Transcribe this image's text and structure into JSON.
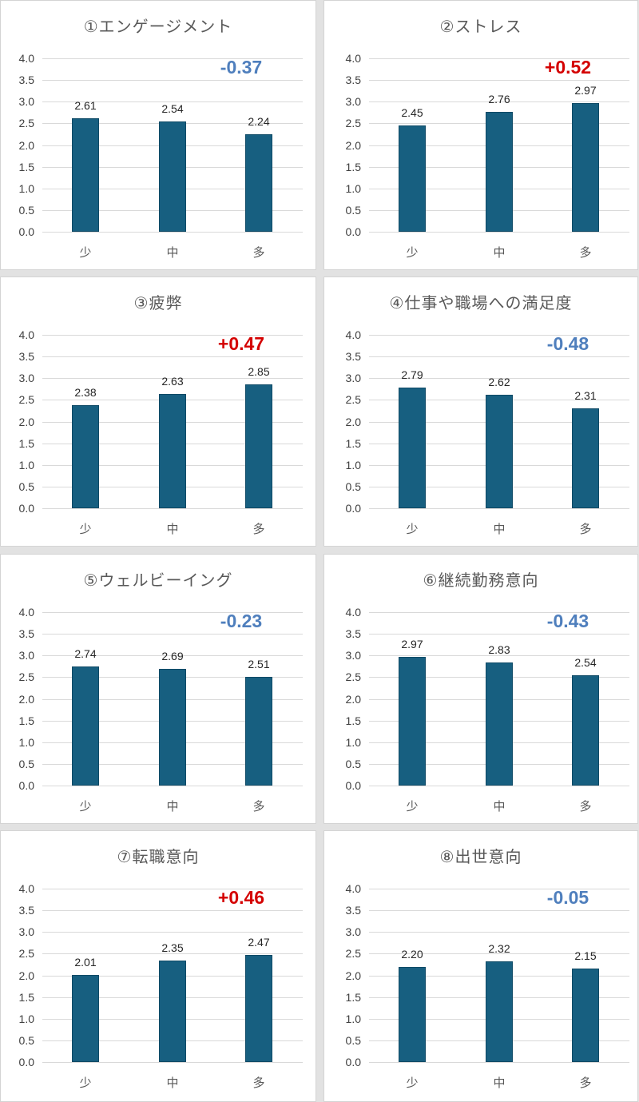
{
  "chart_data": [
    {
      "type": "bar",
      "title": "①エンゲージメント",
      "categories": [
        "少",
        "中",
        "多"
      ],
      "values": [
        2.61,
        2.54,
        2.24
      ],
      "value_labels": [
        "2.61",
        "2.54",
        "2.24"
      ],
      "annotation": "-0.37",
      "annotation_color": "#4f7fbd",
      "ylim": [
        0,
        4.0
      ],
      "yticks": [
        "4.0",
        "3.5",
        "3.0",
        "2.5",
        "2.0",
        "1.5",
        "1.0",
        "0.5",
        "0.0"
      ],
      "grid": true,
      "bar_color": "#175f80"
    },
    {
      "type": "bar",
      "title": "②ストレス",
      "categories": [
        "少",
        "中",
        "多"
      ],
      "values": [
        2.45,
        2.76,
        2.97
      ],
      "value_labels": [
        "2.45",
        "2.76",
        "2.97"
      ],
      "annotation": "+0.52",
      "annotation_color": "#d40000",
      "ylim": [
        0,
        4.0
      ],
      "yticks": [
        "4.0",
        "3.5",
        "3.0",
        "2.5",
        "2.0",
        "1.5",
        "1.0",
        "0.5",
        "0.0"
      ],
      "grid": true,
      "bar_color": "#175f80"
    },
    {
      "type": "bar",
      "title": "③疲弊",
      "categories": [
        "少",
        "中",
        "多"
      ],
      "values": [
        2.38,
        2.63,
        2.85
      ],
      "value_labels": [
        "2.38",
        "2.63",
        "2.85"
      ],
      "annotation": "+0.47",
      "annotation_color": "#d40000",
      "ylim": [
        0,
        4.0
      ],
      "yticks": [
        "4.0",
        "3.5",
        "3.0",
        "2.5",
        "2.0",
        "1.5",
        "1.0",
        "0.5",
        "0.0"
      ],
      "grid": true,
      "bar_color": "#175f80"
    },
    {
      "type": "bar",
      "title": "④仕事や職場への満足度",
      "categories": [
        "少",
        "中",
        "多"
      ],
      "values": [
        2.79,
        2.62,
        2.31
      ],
      "value_labels": [
        "2.79",
        "2.62",
        "2.31"
      ],
      "annotation": "-0.48",
      "annotation_color": "#4f7fbd",
      "ylim": [
        0,
        4.0
      ],
      "yticks": [
        "4.0",
        "3.5",
        "3.0",
        "2.5",
        "2.0",
        "1.5",
        "1.0",
        "0.5",
        "0.0"
      ],
      "grid": true,
      "bar_color": "#175f80"
    },
    {
      "type": "bar",
      "title": "⑤ウェルビーイング",
      "categories": [
        "少",
        "中",
        "多"
      ],
      "values": [
        2.74,
        2.69,
        2.51
      ],
      "value_labels": [
        "2.74",
        "2.69",
        "2.51"
      ],
      "annotation": "-0.23",
      "annotation_color": "#4f7fbd",
      "ylim": [
        0,
        4.0
      ],
      "yticks": [
        "4.0",
        "3.5",
        "3.0",
        "2.5",
        "2.0",
        "1.5",
        "1.0",
        "0.5",
        "0.0"
      ],
      "grid": true,
      "bar_color": "#175f80"
    },
    {
      "type": "bar",
      "title": "⑥継続勤務意向",
      "categories": [
        "少",
        "中",
        "多"
      ],
      "values": [
        2.97,
        2.83,
        2.54
      ],
      "value_labels": [
        "2.97",
        "2.83",
        "2.54"
      ],
      "annotation": "-0.43",
      "annotation_color": "#4f7fbd",
      "ylim": [
        0,
        4.0
      ],
      "yticks": [
        "4.0",
        "3.5",
        "3.0",
        "2.5",
        "2.0",
        "1.5",
        "1.0",
        "0.5",
        "0.0"
      ],
      "grid": true,
      "bar_color": "#175f80"
    },
    {
      "type": "bar",
      "title": "⑦転職意向",
      "categories": [
        "少",
        "中",
        "多"
      ],
      "values": [
        2.01,
        2.35,
        2.47
      ],
      "value_labels": [
        "2.01",
        "2.35",
        "2.47"
      ],
      "annotation": "+0.46",
      "annotation_color": "#d40000",
      "ylim": [
        0,
        4.0
      ],
      "yticks": [
        "4.0",
        "3.5",
        "3.0",
        "2.5",
        "2.0",
        "1.5",
        "1.0",
        "0.5",
        "0.0"
      ],
      "grid": true,
      "bar_color": "#175f80"
    },
    {
      "type": "bar",
      "title": "⑧出世意向",
      "categories": [
        "少",
        "中",
        "多"
      ],
      "values": [
        2.2,
        2.32,
        2.15
      ],
      "value_labels": [
        "2.20",
        "2.32",
        "2.15"
      ],
      "annotation": "-0.05",
      "annotation_color": "#4f7fbd",
      "ylim": [
        0,
        4.0
      ],
      "yticks": [
        "4.0",
        "3.5",
        "3.0",
        "2.5",
        "2.0",
        "1.5",
        "1.0",
        "0.5",
        "0.0"
      ],
      "grid": true,
      "bar_color": "#175f80"
    }
  ]
}
